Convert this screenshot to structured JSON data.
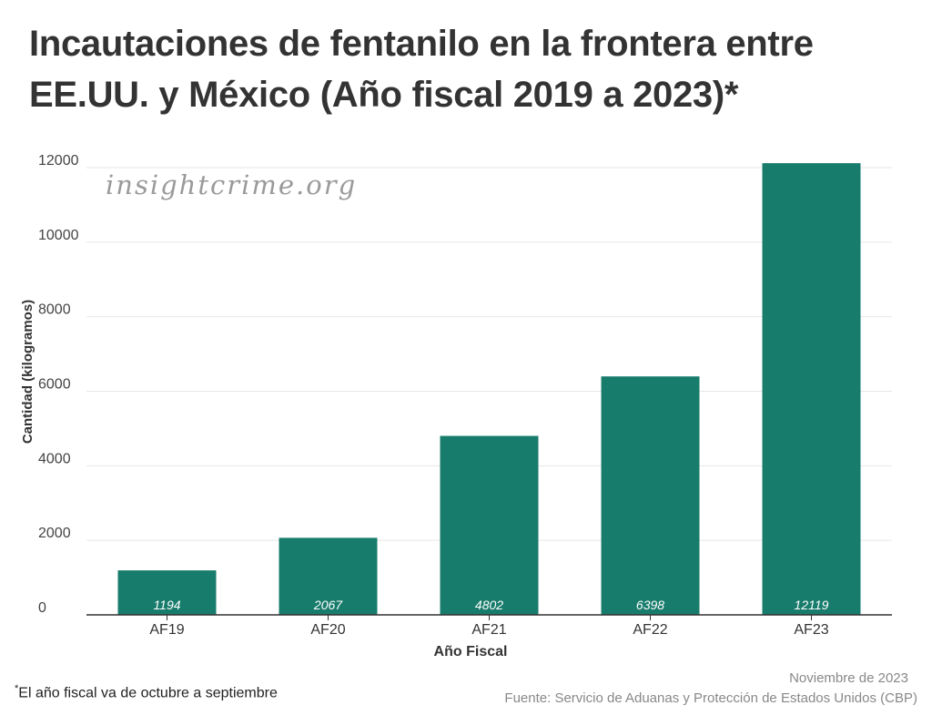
{
  "header": {
    "title": "Incautaciones de fentanilo en la frontera entre EE.UU. y México (Año fiscal 2019 a 2023)*"
  },
  "watermark": "insightcrime.org",
  "chart_data": {
    "type": "bar",
    "categories": [
      "AF19",
      "AF20",
      "AF21",
      "AF22",
      "AF23"
    ],
    "values": [
      1194,
      2067,
      4802,
      6398,
      12119
    ],
    "data_labels": [
      "1194",
      "2067",
      "4802",
      "6398",
      "12119"
    ],
    "xlabel": "Año Fiscal",
    "ylabel": "Cantidad (kilogramos)",
    "ylim": [
      0,
      12000
    ],
    "yticks": [
      0,
      2000,
      4000,
      6000,
      8000,
      10000,
      12000
    ],
    "grid": true,
    "bar_color": "#187c6c"
  },
  "footer": {
    "note_mark": "*",
    "note": "El año fiscal va de octubre a septiembre",
    "date": "Noviembre de 2023",
    "source": "Fuente: Servicio de Aduanas y Protección de Estados Unidos (CBP)"
  }
}
